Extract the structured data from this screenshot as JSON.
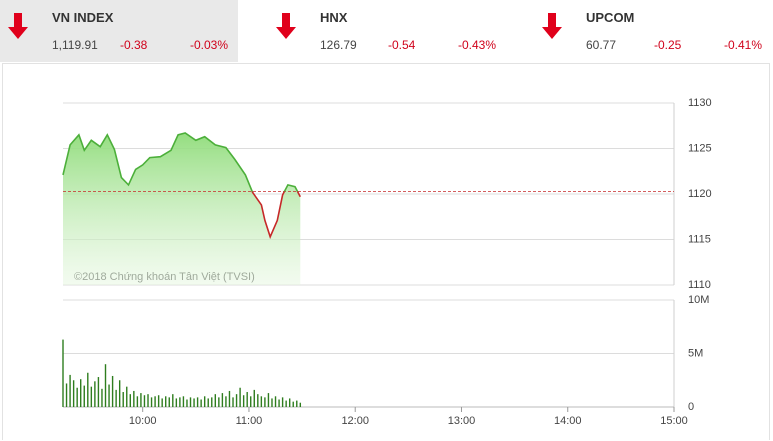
{
  "indices": [
    {
      "name": "VN INDEX",
      "value": "1,119.91",
      "change": "-0.38",
      "percent": "-0.03%"
    },
    {
      "name": "HNX",
      "value": "126.79",
      "change": "-0.54",
      "percent": "-0.43%"
    },
    {
      "name": "UPCOM",
      "value": "60.77",
      "change": "-0.25",
      "percent": "-0.41%"
    }
  ],
  "chart_data": [
    {
      "type": "line",
      "watermark": "©2018 Chứng khoán Tân Việt (TVSI)",
      "x": [
        555,
        559,
        564,
        567,
        571,
        576,
        580,
        584,
        588,
        592,
        596,
        600,
        604,
        610,
        616,
        620,
        624,
        630,
        635,
        641,
        647,
        652,
        658,
        662,
        667,
        669,
        672,
        676,
        679,
        682,
        686,
        689
      ],
      "series": [
        {
          "name": "VN INDEX",
          "color": "#4caf3a",
          "negative_color": "#c62828",
          "values": [
            1122.1,
            1125.4,
            1126.5,
            1124.8,
            1125.9,
            1125.2,
            1126.5,
            1124.9,
            1121.8,
            1121.0,
            1122.7,
            1123.2,
            1124.0,
            1124.1,
            1124.8,
            1126.5,
            1126.7,
            1125.9,
            1126.3,
            1125.4,
            1125.1,
            1123.8,
            1122.1,
            1120.2,
            1118.8,
            1117.1,
            1115.3,
            1117.1,
            1119.9,
            1121.0,
            1120.8,
            1119.7
          ]
        }
      ],
      "reference": 1120.29,
      "reference_color": "#c62828",
      "xlim": [
        555,
        900
      ],
      "ylim": [
        1110,
        1130
      ],
      "yticks": [
        1110,
        1115,
        1120,
        1125,
        1130
      ],
      "grid": true
    },
    {
      "type": "bar",
      "color": "#2e7d1e",
      "x": [
        555,
        557,
        559,
        561,
        563,
        565,
        567,
        569,
        571,
        573,
        575,
        577,
        579,
        581,
        583,
        585,
        587,
        589,
        591,
        593,
        595,
        597,
        599,
        601,
        603,
        605,
        607,
        609,
        611,
        613,
        615,
        617,
        619,
        621,
        623,
        625,
        627,
        629,
        631,
        633,
        635,
        637,
        639,
        641,
        643,
        645,
        647,
        649,
        651,
        653,
        655,
        657,
        659,
        661,
        663,
        665,
        667,
        669,
        671,
        673,
        675,
        677,
        679,
        681,
        683,
        685,
        687,
        689
      ],
      "values": [
        6.3,
        2.2,
        3.0,
        2.5,
        1.8,
        2.6,
        2.0,
        3.2,
        1.9,
        2.4,
        2.8,
        1.7,
        4.0,
        2.1,
        2.9,
        1.6,
        2.5,
        1.4,
        1.9,
        1.2,
        1.5,
        1.0,
        1.3,
        1.1,
        1.2,
        0.9,
        1.0,
        1.1,
        0.8,
        1.0,
        0.9,
        1.2,
        0.8,
        0.9,
        1.0,
        0.7,
        0.9,
        0.8,
        0.9,
        0.7,
        1.0,
        0.8,
        0.9,
        1.2,
        0.9,
        1.3,
        1.0,
        1.5,
        0.9,
        1.2,
        1.8,
        1.1,
        1.4,
        1.0,
        1.6,
        1.2,
        1.0,
        0.9,
        1.3,
        0.8,
        1.0,
        0.7,
        0.9,
        0.6,
        0.8,
        0.5,
        0.6,
        0.4
      ],
      "xlim": [
        555,
        900
      ],
      "xticks": [
        {
          "value": 600,
          "label": "10:00"
        },
        {
          "value": 660,
          "label": "11:00"
        },
        {
          "value": 720,
          "label": "12:00"
        },
        {
          "value": 780,
          "label": "13:00"
        },
        {
          "value": 840,
          "label": "14:00"
        },
        {
          "value": 900,
          "label": "15:00"
        }
      ],
      "ylim": [
        0,
        10
      ],
      "yticks": [
        0,
        {
          "value": 5,
          "label": "5M"
        },
        {
          "value": 10,
          "label": "10M"
        }
      ],
      "grid": true
    }
  ]
}
